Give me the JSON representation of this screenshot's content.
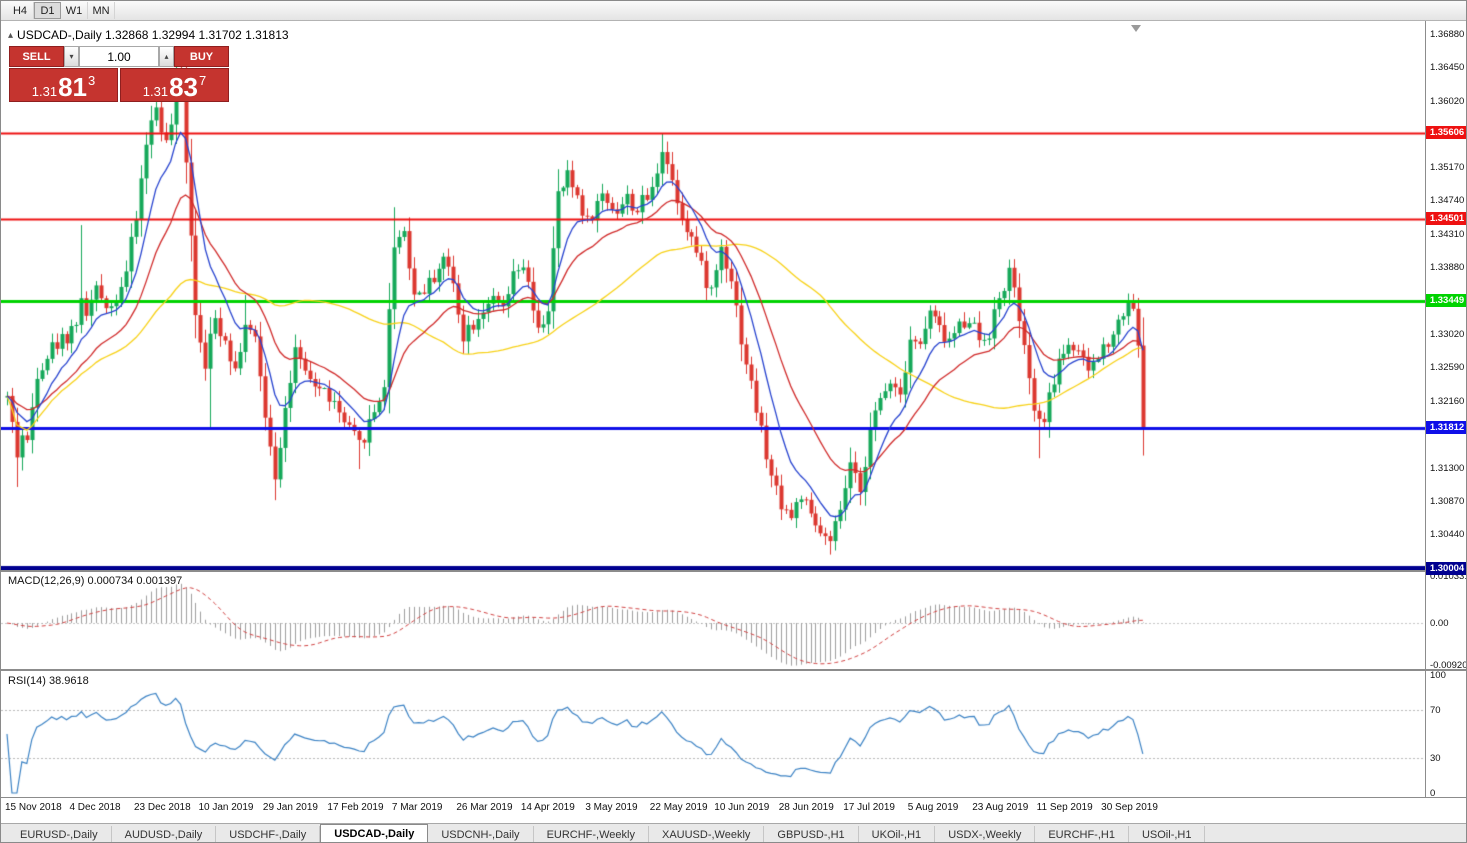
{
  "toolbar": {
    "timeframes": [
      {
        "label": "H4",
        "active": false
      },
      {
        "label": "D1",
        "active": true
      },
      {
        "label": "W1",
        "active": false
      },
      {
        "label": "MN",
        "active": false
      }
    ]
  },
  "chart_header": {
    "collapse_icon": "▴",
    "title": "USDCAD-,Daily 1.32868 1.32994 1.31702 1.31813"
  },
  "trade_panel": {
    "sell_label": "SELL",
    "buy_label": "BUY",
    "volume": "1.00",
    "vol_down_icon": "▾",
    "vol_up_icon": "▴",
    "bid_prefix": "1.31",
    "bid_big": "81",
    "bid_sup": "3",
    "ask_prefix": "1.31",
    "ask_big": "83",
    "ask_sup": "7"
  },
  "indicators": {
    "macd": {
      "label": "MACD(12,26,9) 0.000734 0.001397",
      "axis_max": "0.0103311",
      "axis_zero": "0.00",
      "axis_min": "-0.0092030",
      "fast": 12,
      "slow": 26,
      "signal": 9
    },
    "rsi": {
      "label": "RSI(14) 38.9618",
      "axis": [
        "100",
        "70",
        "30",
        "0"
      ],
      "levels": [
        70,
        30
      ],
      "period": 14
    }
  },
  "chart_data": {
    "type": "candlestick",
    "symbol": "USDCAD-",
    "timeframe": "Daily",
    "ohlc_display": {
      "open": "1.32868",
      "high": "1.32994",
      "low": "1.31702",
      "close": "1.31813"
    },
    "price_axis_ticks": [
      "1.36880",
      "1.36450",
      "1.36020",
      "1.35170",
      "1.34740",
      "1.34310",
      "1.33880",
      "1.33020",
      "1.32590",
      "1.32160",
      "1.31300",
      "1.30870",
      "1.30440"
    ],
    "price_view_max": 1.37047,
    "price_view_min": 1.2898,
    "hlines": [
      {
        "price": 1.35606,
        "label": "1.35606",
        "color": "#ee1111",
        "width": 2
      },
      {
        "price": 1.34501,
        "label": "1.34501",
        "color": "#ee1111",
        "width": 2
      },
      {
        "price": 1.33449,
        "label": "1.33449",
        "color": "#00d300",
        "width": 3
      },
      {
        "price": 1.31812,
        "label": "1.31812",
        "color": "#0f0fe8",
        "width": 3
      },
      {
        "price": 1.30004,
        "label": "1.30004",
        "color": "#000090",
        "width": 5
      }
    ],
    "bar_count": 230,
    "last_close": 1.31813,
    "price_path_anchors": [
      [
        0,
        1.322
      ],
      [
        1,
        1.3185
      ],
      [
        2,
        1.3148
      ],
      [
        3,
        1.3172
      ],
      [
        4,
        1.316
      ],
      [
        6,
        1.3255
      ],
      [
        9,
        1.3285
      ],
      [
        12,
        1.33
      ],
      [
        14,
        1.332
      ],
      [
        15,
        1.334
      ],
      [
        16,
        1.333
      ],
      [
        18,
        1.3355
      ],
      [
        21,
        1.3338
      ],
      [
        24,
        1.3382
      ],
      [
        26,
        1.345
      ],
      [
        28,
        1.355
      ],
      [
        30,
        1.3595
      ],
      [
        32,
        1.3545
      ],
      [
        33,
        1.3572
      ],
      [
        34,
        1.363
      ],
      [
        35,
        1.3612
      ],
      [
        36,
        1.353
      ],
      [
        37,
        1.3435
      ],
      [
        38,
        1.333
      ],
      [
        40,
        1.3268
      ],
      [
        42,
        1.332
      ],
      [
        44,
        1.3298
      ],
      [
        46,
        1.3256
      ],
      [
        48,
        1.3316
      ],
      [
        50,
        1.329
      ],
      [
        52,
        1.32
      ],
      [
        54,
        1.3122
      ],
      [
        56,
        1.3205
      ],
      [
        58,
        1.3278
      ],
      [
        60,
        1.3246
      ],
      [
        63,
        1.3232
      ],
      [
        65,
        1.3222
      ],
      [
        68,
        1.3186
      ],
      [
        71,
        1.3158
      ],
      [
        74,
        1.3202
      ],
      [
        76,
        1.3238
      ],
      [
        78,
        1.342
      ],
      [
        80,
        1.3436
      ],
      [
        82,
        1.3352
      ],
      [
        85,
        1.3366
      ],
      [
        88,
        1.34
      ],
      [
        90,
        1.3366
      ],
      [
        92,
        1.3302
      ],
      [
        95,
        1.3326
      ],
      [
        97,
        1.3346
      ],
      [
        100,
        1.3332
      ],
      [
        102,
        1.3372
      ],
      [
        104,
        1.339
      ],
      [
        107,
        1.3302
      ],
      [
        109,
        1.3336
      ],
      [
        111,
        1.3478
      ],
      [
        113,
        1.3504
      ],
      [
        115,
        1.348
      ],
      [
        117,
        1.3446
      ],
      [
        120,
        1.348
      ],
      [
        123,
        1.3462
      ],
      [
        125,
        1.3476
      ],
      [
        127,
        1.3462
      ],
      [
        130,
        1.3486
      ],
      [
        132,
        1.3544
      ],
      [
        134,
        1.35
      ],
      [
        136,
        1.3456
      ],
      [
        138,
        1.3426
      ],
      [
        140,
        1.3386
      ],
      [
        142,
        1.3356
      ],
      [
        144,
        1.3414
      ],
      [
        146,
        1.3376
      ],
      [
        148,
        1.3296
      ],
      [
        150,
        1.3236
      ],
      [
        152,
        1.3176
      ],
      [
        154,
        1.3116
      ],
      [
        156,
        1.3086
      ],
      [
        158,
        1.3066
      ],
      [
        160,
        1.3096
      ],
      [
        162,
        1.3062
      ],
      [
        164,
        1.3046
      ],
      [
        166,
        1.3028
      ],
      [
        168,
        1.3076
      ],
      [
        170,
        1.3126
      ],
      [
        172,
        1.3106
      ],
      [
        174,
        1.3176
      ],
      [
        176,
        1.3216
      ],
      [
        178,
        1.3246
      ],
      [
        180,
        1.3226
      ],
      [
        182,
        1.33
      ],
      [
        184,
        1.3286
      ],
      [
        186,
        1.333
      ],
      [
        188,
        1.3306
      ],
      [
        190,
        1.3292
      ],
      [
        192,
        1.3312
      ],
      [
        194,
        1.3326
      ],
      [
        196,
        1.3296
      ],
      [
        198,
        1.3306
      ],
      [
        200,
        1.3346
      ],
      [
        202,
        1.3382
      ],
      [
        204,
        1.3322
      ],
      [
        206,
        1.3236
      ],
      [
        208,
        1.3182
      ],
      [
        210,
        1.3216
      ],
      [
        212,
        1.327
      ],
      [
        214,
        1.3292
      ],
      [
        216,
        1.3272
      ],
      [
        218,
        1.3256
      ],
      [
        220,
        1.3272
      ],
      [
        222,
        1.3296
      ],
      [
        224,
        1.3316
      ],
      [
        226,
        1.3346
      ],
      [
        227,
        1.3335
      ],
      [
        228,
        1.3287
      ],
      [
        229,
        1.31813
      ]
    ],
    "high_spikes": [
      [
        15,
        1.3442
      ],
      [
        34,
        1.364
      ],
      [
        48,
        1.3352
      ],
      [
        78,
        1.3465
      ],
      [
        113,
        1.352
      ],
      [
        132,
        1.356
      ],
      [
        202,
        1.3392
      ],
      [
        226,
        1.3354
      ],
      [
        229,
        1.32994
      ]
    ],
    "low_spikes": [
      [
        2,
        1.3105
      ],
      [
        41,
        1.3182
      ],
      [
        54,
        1.3088
      ],
      [
        71,
        1.3128
      ],
      [
        166,
        1.3018
      ],
      [
        208,
        1.3142
      ],
      [
        229,
        1.31702
      ]
    ],
    "date_axis": [
      "15 Nov 2018",
      "4 Dec 2018",
      "23 Dec 2018",
      "10 Jan 2019",
      "29 Jan 2019",
      "17 Feb 2019",
      "7 Mar 2019",
      "26 Mar 2019",
      "14 Apr 2019",
      "3 May 2019",
      "22 May 2019",
      "10 Jun 2019",
      "28 Jun 2019",
      "17 Jul 2019",
      "5 Aug 2019",
      "23 Aug 2019",
      "11 Sep 2019",
      "30 Sep 2019"
    ],
    "label_every_bars": 13,
    "colors": {
      "bull": "#16a85a",
      "bear": "#dc3830",
      "ma_fast": "#2743cf",
      "ma_mid": "#d02a2a",
      "ma_slow": "#f7d117",
      "macd_hist": "#9e9e9e",
      "macd_signal": "#d04040",
      "rsi": "#3b82c4"
    }
  },
  "tabs": [
    {
      "label": "EURUSD-,Daily",
      "active": false
    },
    {
      "label": "AUDUSD-,Daily",
      "active": false
    },
    {
      "label": "USDCHF-,Daily",
      "active": false
    },
    {
      "label": "USDCAD-,Daily",
      "active": true
    },
    {
      "label": "USDCNH-,Daily",
      "active": false
    },
    {
      "label": "EURCHF-,Weekly",
      "active": false
    },
    {
      "label": "XAUUSD-,Weekly",
      "active": false
    },
    {
      "label": "GBPUSD-,H1",
      "active": false
    },
    {
      "label": "UKOil-,H1",
      "active": false
    },
    {
      "label": "USDX-,Weekly",
      "active": false
    },
    {
      "label": "EURCHF-,H1",
      "active": false
    },
    {
      "label": "USOil-,H1",
      "active": false
    }
  ]
}
